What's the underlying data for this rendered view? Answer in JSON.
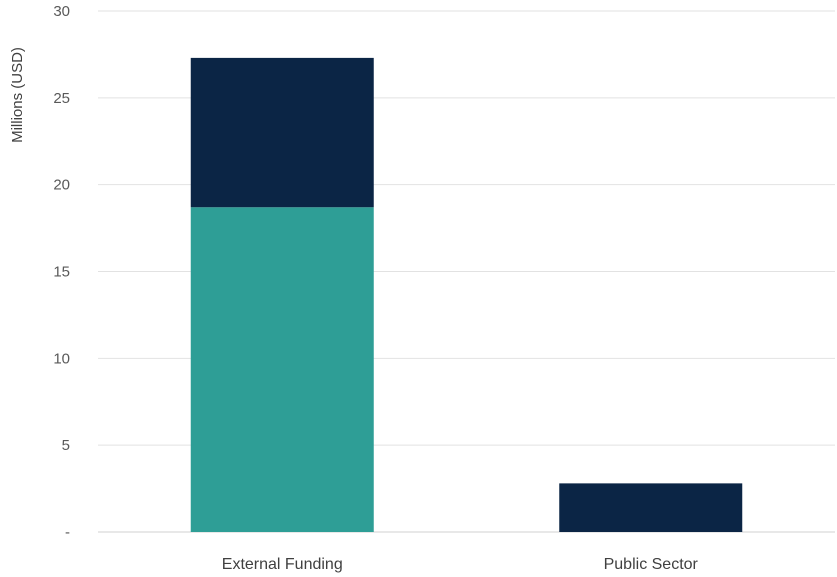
{
  "chart_data": {
    "type": "bar",
    "stacked": true,
    "categories": [
      "External Funding",
      "Public Sector"
    ],
    "series": [
      {
        "values": [
          18.7,
          0
        ],
        "color": "#2e9e96"
      },
      {
        "values": [
          8.6,
          2.8
        ],
        "color": "#0b2545"
      }
    ],
    "title": "",
    "xlabel": "",
    "ylabel": "Millions (USD)",
    "ylim": [
      0,
      30
    ],
    "yticks": [
      0,
      5,
      10,
      15,
      20,
      25,
      30
    ],
    "ytick_labels": [
      "-",
      "5",
      "10",
      "15",
      "20",
      "25",
      "30"
    ],
    "grid": true,
    "legend": "none"
  }
}
